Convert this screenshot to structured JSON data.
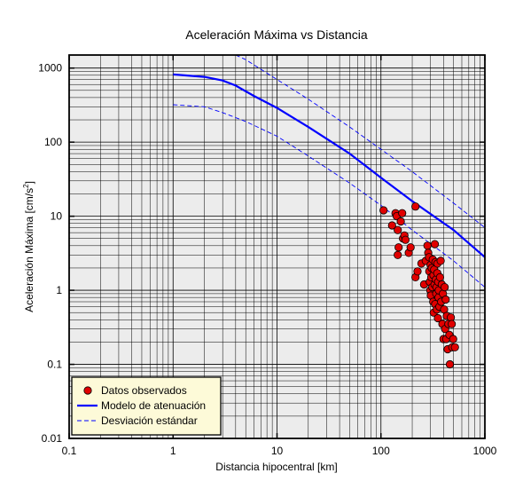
{
  "chart_data": {
    "type": "scatter",
    "title": "Aceleración Máxima vs Distancia",
    "xlabel": "Distancia hipocentral [km]",
    "ylabel_main": "Aceleración Máxima [cm/s",
    "ylabel_sup": "2",
    "ylabel_end": "]",
    "xscale": "log",
    "yscale": "log",
    "xlim": [
      0.1,
      1000
    ],
    "ylim": [
      0.01,
      1500
    ],
    "grid": true,
    "legend_position": "bottom-left",
    "x_ticks": [
      {
        "value": 0.1,
        "label": "0.1"
      },
      {
        "value": 1,
        "label": "1"
      },
      {
        "value": 10,
        "label": "10"
      },
      {
        "value": 100,
        "label": "100"
      },
      {
        "value": 1000,
        "label": "1000"
      }
    ],
    "y_ticks": [
      {
        "value": 0.01,
        "label": "0.01"
      },
      {
        "value": 0.1,
        "label": "0.1"
      },
      {
        "value": 1,
        "label": "1"
      },
      {
        "value": 10,
        "label": "10"
      },
      {
        "value": 100,
        "label": "100"
      },
      {
        "value": 1000,
        "label": "1000"
      }
    ],
    "legend": [
      {
        "label": "Datos observados",
        "kind": "marker",
        "color": "#e00000"
      },
      {
        "label": "Modelo de atenuación",
        "kind": "solid",
        "color": "#0000ff"
      },
      {
        "label": "Desviación estándar",
        "kind": "dashed",
        "color": "#0000ff"
      }
    ],
    "model": [
      [
        1,
        820
      ],
      [
        2,
        760
      ],
      [
        3,
        680
      ],
      [
        4,
        580
      ],
      [
        6,
        420
      ],
      [
        10,
        290
      ],
      [
        20,
        160
      ],
      [
        50,
        70
      ],
      [
        100,
        33
      ],
      [
        200,
        16
      ],
      [
        500,
        6.5
      ],
      [
        1000,
        2.8
      ]
    ],
    "upper": [
      [
        4,
        1500
      ],
      [
        5,
        1300
      ],
      [
        10,
        700
      ],
      [
        20,
        380
      ],
      [
        50,
        160
      ],
      [
        100,
        80
      ],
      [
        200,
        40
      ],
      [
        500,
        15
      ],
      [
        1000,
        7
      ]
    ],
    "lower": [
      [
        1,
        320
      ],
      [
        2,
        300
      ],
      [
        3,
        250
      ],
      [
        5,
        190
      ],
      [
        10,
        120
      ],
      [
        20,
        65
      ],
      [
        50,
        28
      ],
      [
        100,
        14
      ],
      [
        200,
        6.5
      ],
      [
        500,
        2.5
      ],
      [
        1000,
        1.1
      ]
    ],
    "points": [
      [
        106,
        12
      ],
      [
        128,
        7.5
      ],
      [
        138,
        11
      ],
      [
        142,
        10
      ],
      [
        145,
        6.5
      ],
      [
        148,
        3.8
      ],
      [
        145,
        3.0
      ],
      [
        155,
        8.5
      ],
      [
        160,
        11
      ],
      [
        163,
        5.0
      ],
      [
        168,
        5.5
      ],
      [
        172,
        4.8
      ],
      [
        185,
        3.2
      ],
      [
        193,
        3.8
      ],
      [
        215,
        13.5
      ],
      [
        215,
        1.5
      ],
      [
        225,
        1.8
      ],
      [
        245,
        2.3
      ],
      [
        260,
        1.2
      ],
      [
        270,
        2.5
      ],
      [
        280,
        4.0
      ],
      [
        285,
        3.2
      ],
      [
        290,
        2.8
      ],
      [
        292,
        1.8
      ],
      [
        295,
        1.3
      ],
      [
        298,
        1.0
      ],
      [
        300,
        2.2
      ],
      [
        302,
        0.85
      ],
      [
        305,
        1.5
      ],
      [
        308,
        2.0
      ],
      [
        312,
        1.1
      ],
      [
        315,
        2.6
      ],
      [
        318,
        0.7
      ],
      [
        320,
        1.6
      ],
      [
        322,
        0.5
      ],
      [
        325,
        1.9
      ],
      [
        328,
        1.2
      ],
      [
        330,
        4.2
      ],
      [
        332,
        0.65
      ],
      [
        335,
        2.4
      ],
      [
        338,
        1.4
      ],
      [
        340,
        0.9
      ],
      [
        342,
        1.1
      ],
      [
        345,
        0.55
      ],
      [
        348,
        1.7
      ],
      [
        350,
        2.3
      ],
      [
        353,
        0.42
      ],
      [
        355,
        1.3
      ],
      [
        358,
        0.8
      ],
      [
        360,
        1.0
      ],
      [
        365,
        0.6
      ],
      [
        370,
        1.5
      ],
      [
        375,
        2.5
      ],
      [
        380,
        0.7
      ],
      [
        385,
        1.2
      ],
      [
        390,
        0.35
      ],
      [
        395,
        0.9
      ],
      [
        400,
        0.22
      ],
      [
        405,
        0.55
      ],
      [
        410,
        1.1
      ],
      [
        415,
        0.3
      ],
      [
        420,
        0.75
      ],
      [
        425,
        0.22
      ],
      [
        430,
        0.45
      ],
      [
        438,
        0.16
      ],
      [
        445,
        0.35
      ],
      [
        455,
        0.25
      ],
      [
        460,
        0.1
      ],
      [
        470,
        0.43
      ],
      [
        480,
        0.35
      ],
      [
        485,
        0.17
      ],
      [
        495,
        0.22
      ],
      [
        515,
        0.17
      ]
    ]
  }
}
